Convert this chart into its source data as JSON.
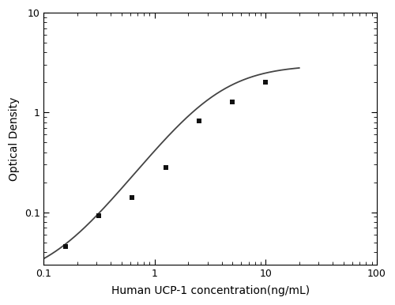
{
  "x_data": [
    0.156,
    0.313,
    0.625,
    1.25,
    2.5,
    5.0,
    10.0
  ],
  "y_data": [
    0.045,
    0.092,
    0.14,
    0.28,
    0.82,
    1.28,
    2.0
  ],
  "xlabel": "Human UCP-1 concentration(ng/mL)",
  "ylabel": "Optical Density",
  "xlim": [
    0.1,
    100
  ],
  "ylim": [
    0.03,
    10
  ],
  "curve_color": "#444444",
  "marker_color": "#111111",
  "background_color": "#ffffff",
  "marker_size": 22
}
